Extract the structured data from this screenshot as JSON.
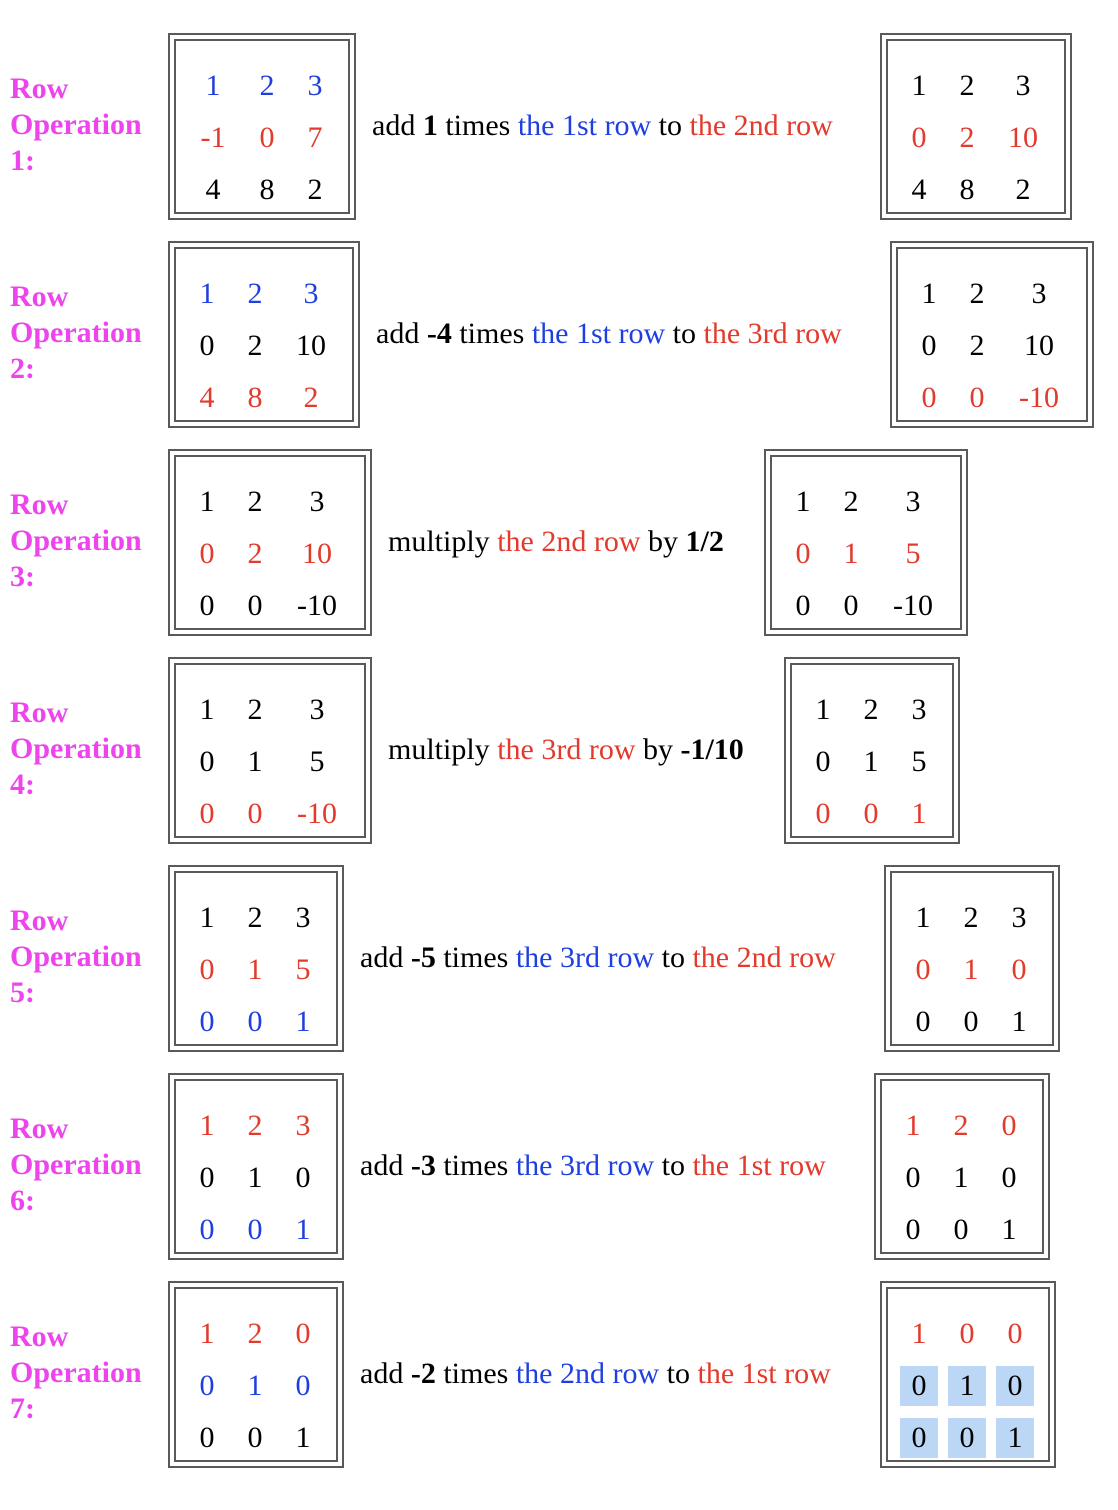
{
  "colors": {
    "label": "#ee44ee",
    "blue": "#1f3fe0",
    "red": "#e23a2c",
    "highlight": "#bcd6f5"
  },
  "operations": [
    {
      "label": "Row\nOperation\n1:",
      "description": [
        {
          "t": "add ",
          "c": "black"
        },
        {
          "t": "1",
          "c": "black",
          "b": true
        },
        {
          "t": " times ",
          "c": "black"
        },
        {
          "t": "the 1st row",
          "c": "blue"
        },
        {
          "t": " to ",
          "c": "black"
        },
        {
          "t": "the 2nd row",
          "c": "red"
        }
      ],
      "before": [
        [
          [
            "1",
            "blue"
          ],
          [
            "2",
            "blue"
          ],
          [
            "3",
            "blue"
          ]
        ],
        [
          [
            "-1",
            "red"
          ],
          [
            "0",
            "red"
          ],
          [
            "7",
            "red"
          ]
        ],
        [
          [
            "4",
            "black"
          ],
          [
            "8",
            "black"
          ],
          [
            "2",
            "black"
          ]
        ]
      ],
      "after": [
        [
          [
            "1",
            "black"
          ],
          [
            "2",
            "black"
          ],
          [
            "3",
            "black"
          ]
        ],
        [
          [
            "0",
            "red"
          ],
          [
            "2",
            "red"
          ],
          [
            "10",
            "red"
          ]
        ],
        [
          [
            "4",
            "black"
          ],
          [
            "8",
            "black"
          ],
          [
            "2",
            "black"
          ]
        ]
      ]
    },
    {
      "label": "Row\nOperation\n2:",
      "description": [
        {
          "t": "add ",
          "c": "black"
        },
        {
          "t": "-4",
          "c": "black",
          "b": true
        },
        {
          "t": " times ",
          "c": "black"
        },
        {
          "t": "the 1st row",
          "c": "blue"
        },
        {
          "t": " to ",
          "c": "black"
        },
        {
          "t": "the 3rd row",
          "c": "red"
        }
      ],
      "before": [
        [
          [
            "1",
            "blue"
          ],
          [
            "2",
            "blue"
          ],
          [
            "3",
            "blue"
          ]
        ],
        [
          [
            "0",
            "black"
          ],
          [
            "2",
            "black"
          ],
          [
            "10",
            "black"
          ]
        ],
        [
          [
            "4",
            "red"
          ],
          [
            "8",
            "red"
          ],
          [
            "2",
            "red"
          ]
        ]
      ],
      "after": [
        [
          [
            "1",
            "black"
          ],
          [
            "2",
            "black"
          ],
          [
            "3",
            "black"
          ]
        ],
        [
          [
            "0",
            "black"
          ],
          [
            "2",
            "black"
          ],
          [
            "10",
            "black"
          ]
        ],
        [
          [
            "0",
            "red"
          ],
          [
            "0",
            "red"
          ],
          [
            "-10",
            "red"
          ]
        ]
      ]
    },
    {
      "label": "Row\nOperation\n3:",
      "description": [
        {
          "t": "multiply ",
          "c": "black"
        },
        {
          "t": "the 2nd row",
          "c": "red"
        },
        {
          "t": " by ",
          "c": "black"
        },
        {
          "t": "1/2",
          "c": "black",
          "b": true
        }
      ],
      "before": [
        [
          [
            "1",
            "black"
          ],
          [
            "2",
            "black"
          ],
          [
            "3",
            "black"
          ]
        ],
        [
          [
            "0",
            "red"
          ],
          [
            "2",
            "red"
          ],
          [
            "10",
            "red"
          ]
        ],
        [
          [
            "0",
            "black"
          ],
          [
            "0",
            "black"
          ],
          [
            "-10",
            "black"
          ]
        ]
      ],
      "after": [
        [
          [
            "1",
            "black"
          ],
          [
            "2",
            "black"
          ],
          [
            "3",
            "black"
          ]
        ],
        [
          [
            "0",
            "red"
          ],
          [
            "1",
            "red"
          ],
          [
            "5",
            "red"
          ]
        ],
        [
          [
            "0",
            "black"
          ],
          [
            "0",
            "black"
          ],
          [
            "-10",
            "black"
          ]
        ]
      ]
    },
    {
      "label": "Row\nOperation\n4:",
      "description": [
        {
          "t": "multiply ",
          "c": "black"
        },
        {
          "t": "the 3rd row",
          "c": "red"
        },
        {
          "t": " by ",
          "c": "black"
        },
        {
          "t": "-1/10",
          "c": "black",
          "b": true
        }
      ],
      "before": [
        [
          [
            "1",
            "black"
          ],
          [
            "2",
            "black"
          ],
          [
            "3",
            "black"
          ]
        ],
        [
          [
            "0",
            "black"
          ],
          [
            "1",
            "black"
          ],
          [
            "5",
            "black"
          ]
        ],
        [
          [
            "0",
            "red"
          ],
          [
            "0",
            "red"
          ],
          [
            "-10",
            "red"
          ]
        ]
      ],
      "after": [
        [
          [
            "1",
            "black"
          ],
          [
            "2",
            "black"
          ],
          [
            "3",
            "black"
          ]
        ],
        [
          [
            "0",
            "black"
          ],
          [
            "1",
            "black"
          ],
          [
            "5",
            "black"
          ]
        ],
        [
          [
            "0",
            "red"
          ],
          [
            "0",
            "red"
          ],
          [
            "1",
            "red"
          ]
        ]
      ]
    },
    {
      "label": "Row\nOperation\n5:",
      "description": [
        {
          "t": "add ",
          "c": "black"
        },
        {
          "t": "-5",
          "c": "black",
          "b": true
        },
        {
          "t": " times ",
          "c": "black"
        },
        {
          "t": "the 3rd row",
          "c": "blue"
        },
        {
          "t": " to ",
          "c": "black"
        },
        {
          "t": "the 2nd row",
          "c": "red"
        }
      ],
      "before": [
        [
          [
            "1",
            "black"
          ],
          [
            "2",
            "black"
          ],
          [
            "3",
            "black"
          ]
        ],
        [
          [
            "0",
            "red"
          ],
          [
            "1",
            "red"
          ],
          [
            "5",
            "red"
          ]
        ],
        [
          [
            "0",
            "blue"
          ],
          [
            "0",
            "blue"
          ],
          [
            "1",
            "blue"
          ]
        ]
      ],
      "after": [
        [
          [
            "1",
            "black"
          ],
          [
            "2",
            "black"
          ],
          [
            "3",
            "black"
          ]
        ],
        [
          [
            "0",
            "red"
          ],
          [
            "1",
            "red"
          ],
          [
            "0",
            "red"
          ]
        ],
        [
          [
            "0",
            "black"
          ],
          [
            "0",
            "black"
          ],
          [
            "1",
            "black"
          ]
        ]
      ]
    },
    {
      "label": "Row\nOperation\n6:",
      "description": [
        {
          "t": "add ",
          "c": "black"
        },
        {
          "t": "-3",
          "c": "black",
          "b": true
        },
        {
          "t": " times ",
          "c": "black"
        },
        {
          "t": "the 3rd row",
          "c": "blue"
        },
        {
          "t": " to ",
          "c": "black"
        },
        {
          "t": "the 1st row",
          "c": "red"
        }
      ],
      "before": [
        [
          [
            "1",
            "red"
          ],
          [
            "2",
            "red"
          ],
          [
            "3",
            "red"
          ]
        ],
        [
          [
            "0",
            "black"
          ],
          [
            "1",
            "black"
          ],
          [
            "0",
            "black"
          ]
        ],
        [
          [
            "0",
            "blue"
          ],
          [
            "0",
            "blue"
          ],
          [
            "1",
            "blue"
          ]
        ]
      ],
      "after": [
        [
          [
            "1",
            "red"
          ],
          [
            "2",
            "red"
          ],
          [
            "0",
            "red"
          ]
        ],
        [
          [
            "0",
            "black"
          ],
          [
            "1",
            "black"
          ],
          [
            "0",
            "black"
          ]
        ],
        [
          [
            "0",
            "black"
          ],
          [
            "0",
            "black"
          ],
          [
            "1",
            "black"
          ]
        ]
      ]
    },
    {
      "label": "Row\nOperation\n7:",
      "description": [
        {
          "t": "add ",
          "c": "black"
        },
        {
          "t": "-2",
          "c": "black",
          "b": true
        },
        {
          "t": " times ",
          "c": "black"
        },
        {
          "t": "the 2nd row",
          "c": "blue"
        },
        {
          "t": " to ",
          "c": "black"
        },
        {
          "t": "the 1st row",
          "c": "red"
        }
      ],
      "before": [
        [
          [
            "1",
            "red"
          ],
          [
            "2",
            "red"
          ],
          [
            "0",
            "red"
          ]
        ],
        [
          [
            "0",
            "blue"
          ],
          [
            "1",
            "blue"
          ],
          [
            "0",
            "blue"
          ]
        ],
        [
          [
            "0",
            "black"
          ],
          [
            "0",
            "black"
          ],
          [
            "1",
            "black"
          ]
        ]
      ],
      "after": [
        [
          [
            "1",
            "red"
          ],
          [
            "0",
            "red"
          ],
          [
            "0",
            "red"
          ]
        ],
        [
          [
            "0",
            "black",
            "hl"
          ],
          [
            "1",
            "black",
            "hl"
          ],
          [
            "0",
            "black",
            "hl"
          ]
        ],
        [
          [
            "0",
            "black",
            "hl"
          ],
          [
            "0",
            "black",
            "hl"
          ],
          [
            "1",
            "black",
            "hl"
          ]
        ]
      ]
    }
  ]
}
